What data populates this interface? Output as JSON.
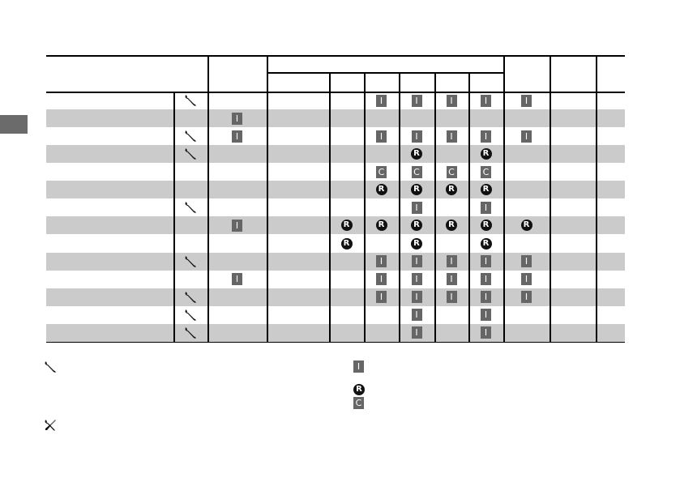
{
  "colors": {
    "gray_row": "#cbcbcb",
    "symbol_box": "#666666",
    "side_tab": "#6b6b6b"
  },
  "symbols": {
    "I": "I",
    "R": "R",
    "C": "C"
  },
  "rows": [
    {
      "wrench": true,
      "cells": [
        "",
        "",
        "",
        "I",
        "I",
        "I",
        "I",
        "I",
        "",
        ""
      ]
    },
    {
      "wrench": false,
      "cells": [
        "I",
        "",
        "",
        "",
        "",
        "",
        "",
        "",
        "",
        ""
      ]
    },
    {
      "wrench": true,
      "cells": [
        "I",
        "",
        "",
        "I",
        "I",
        "I",
        "I",
        "I",
        "",
        ""
      ]
    },
    {
      "wrench": true,
      "cells": [
        "",
        "",
        "",
        "",
        "R",
        "",
        "R",
        "",
        "",
        ""
      ]
    },
    {
      "wrench": false,
      "cells": [
        "",
        "",
        "",
        "C",
        "C",
        "C",
        "C",
        "",
        "",
        ""
      ]
    },
    {
      "wrench": false,
      "cells": [
        "",
        "",
        "",
        "R",
        "R",
        "R",
        "R",
        "",
        "",
        ""
      ]
    },
    {
      "wrench": true,
      "cells": [
        "",
        "",
        "",
        "",
        "I",
        "",
        "I",
        "",
        "",
        ""
      ]
    },
    {
      "wrench": false,
      "cells": [
        "I",
        "",
        "R",
        "R",
        "R",
        "R",
        "R",
        "R",
        "",
        ""
      ]
    },
    {
      "wrench": false,
      "cells": [
        "",
        "",
        "R",
        "",
        "R",
        "",
        "R",
        "",
        "",
        ""
      ]
    },
    {
      "wrench": true,
      "cells": [
        "",
        "",
        "",
        "I",
        "I",
        "I",
        "I",
        "I",
        "",
        ""
      ]
    },
    {
      "wrench": false,
      "cells": [
        "I",
        "",
        "",
        "I",
        "I",
        "I",
        "I",
        "I",
        "",
        ""
      ]
    },
    {
      "wrench": true,
      "cells": [
        "",
        "",
        "",
        "I",
        "I",
        "I",
        "I",
        "I",
        "",
        ""
      ]
    },
    {
      "wrench": true,
      "cells": [
        "",
        "",
        "",
        "",
        "I",
        "",
        "I",
        "",
        "",
        ""
      ]
    },
    {
      "wrench": true,
      "cells": [
        "",
        "",
        "",
        "",
        "I",
        "",
        "I",
        "",
        "",
        ""
      ]
    }
  ],
  "legend": {
    "icons": [
      "wrench-icon",
      "wrench-screwdriver-icon"
    ],
    "symbols": [
      "I",
      "R",
      "C"
    ]
  }
}
